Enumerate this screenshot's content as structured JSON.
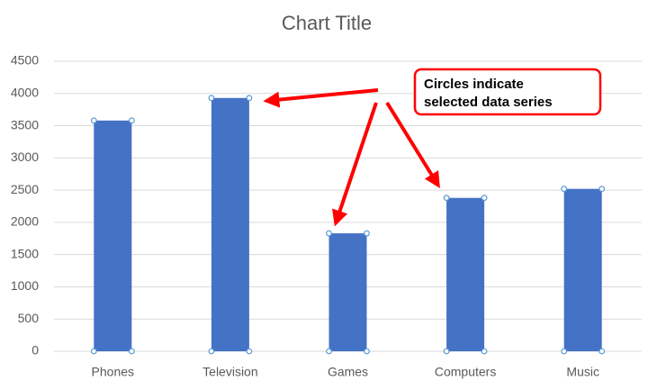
{
  "chart_data": {
    "type": "bar",
    "title": "Chart Title",
    "categories": [
      "Phones",
      "Television",
      "Games",
      "Computers",
      "Music"
    ],
    "values": [
      3580,
      3930,
      1830,
      2380,
      2520
    ],
    "color": "#4472c4",
    "ylim": [
      0,
      4500
    ],
    "yticks": [
      0,
      500,
      1000,
      1500,
      2000,
      2500,
      3000,
      3500,
      4000,
      4500
    ],
    "grid": true,
    "annotation": [
      "Circles indicate",
      "selected data series"
    ]
  }
}
